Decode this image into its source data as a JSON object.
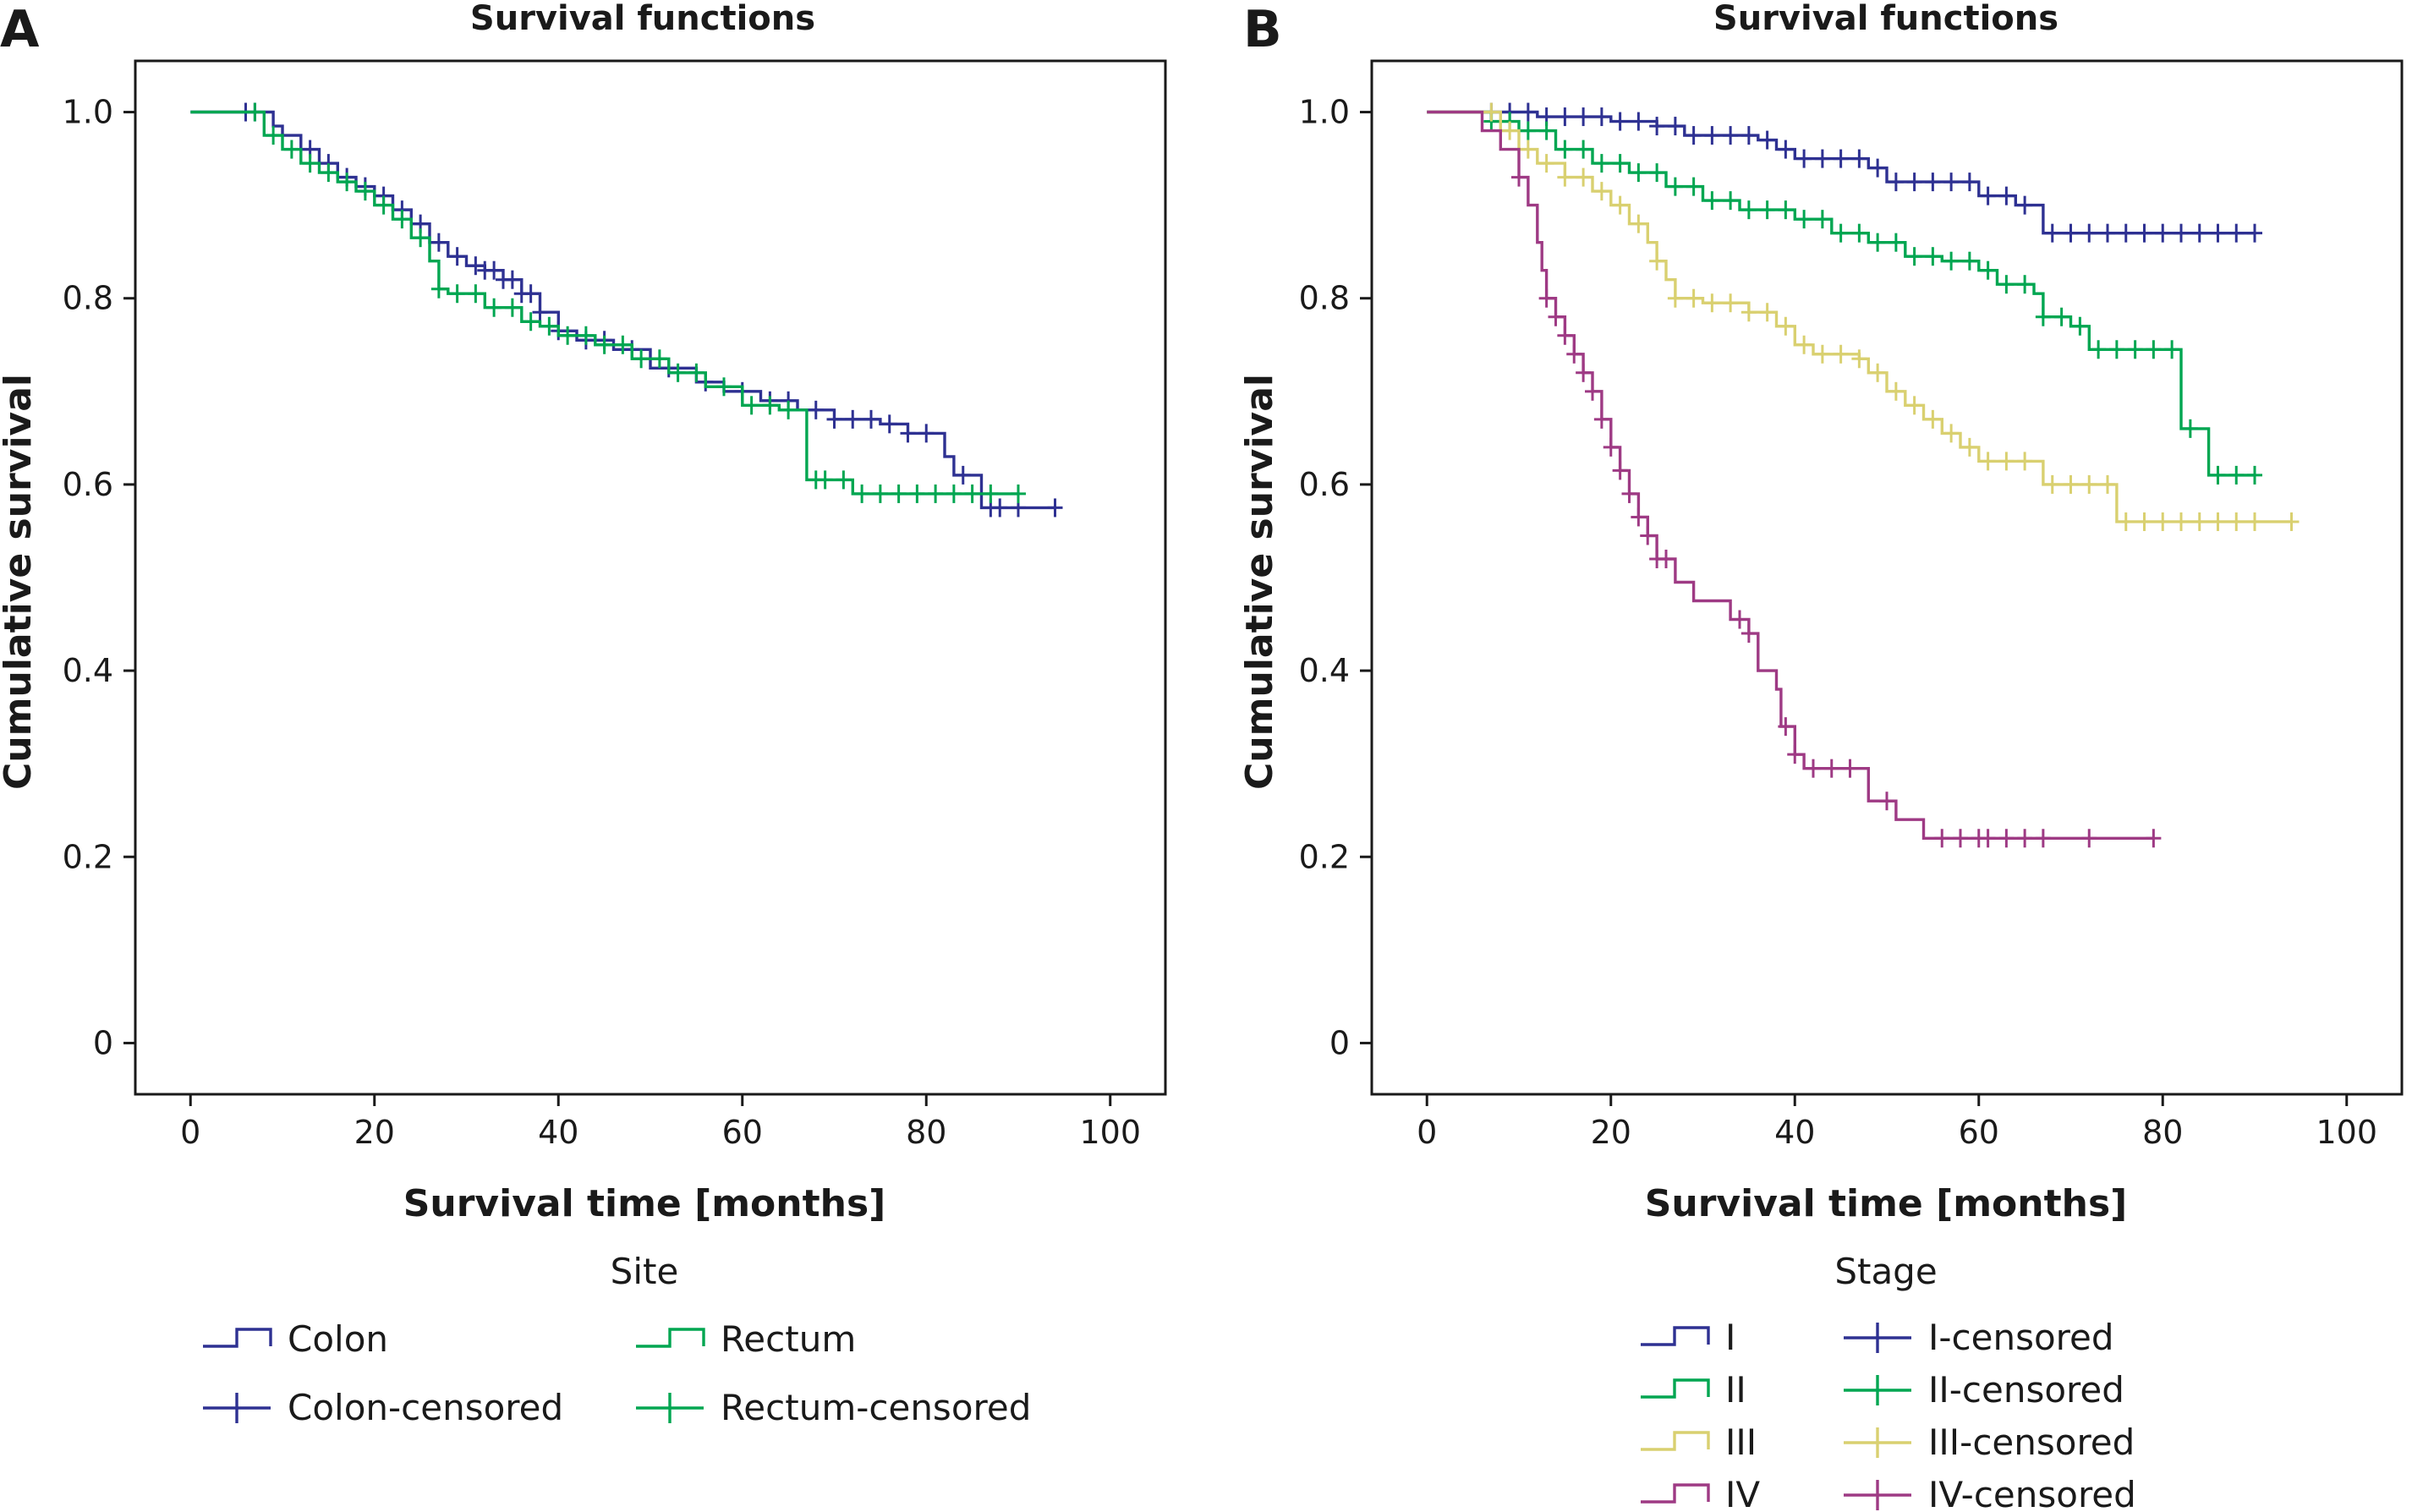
{
  "colors": {
    "colon": "#2e3192",
    "rectum": "#00a651",
    "I": "#2e3192",
    "II": "#00a651",
    "III": "#d9d070",
    "IV": "#9e3a84",
    "axis": "#1a1a1a"
  },
  "chart_data": [
    {
      "panel": "A",
      "type": "line",
      "step": true,
      "title": "Survival functions",
      "xlabel": "Survival time [months]",
      "ylabel": "Cumulative survival",
      "xlim": [
        -6,
        106
      ],
      "ylim": [
        -0.055,
        1.055
      ],
      "xticks": [
        "0",
        "20",
        "40",
        "60",
        "80",
        "100"
      ],
      "yticks": [
        "0",
        "0.2",
        "0.4",
        "0.6",
        "0.8",
        "1.0"
      ],
      "legend_title": "Site",
      "legend_position": "bottom",
      "legend": [
        "Colon",
        "Rectum",
        "Colon-censored",
        "Rectum-censored"
      ],
      "series": [
        {
          "name": "Colon",
          "color_key": "colon",
          "points": [
            [
              0,
              1.0
            ],
            [
              9,
              1.0
            ],
            [
              9,
              0.985
            ],
            [
              10,
              0.975
            ],
            [
              12,
              0.96
            ],
            [
              14,
              0.945
            ],
            [
              16,
              0.93
            ],
            [
              18,
              0.92
            ],
            [
              20,
              0.91
            ],
            [
              22,
              0.895
            ],
            [
              24,
              0.88
            ],
            [
              26,
              0.86
            ],
            [
              28,
              0.845
            ],
            [
              30,
              0.835
            ],
            [
              32,
              0.83
            ],
            [
              34,
              0.82
            ],
            [
              36,
              0.805
            ],
            [
              38,
              0.785
            ],
            [
              40,
              0.765
            ],
            [
              42,
              0.755
            ],
            [
              46,
              0.745
            ],
            [
              50,
              0.725
            ],
            [
              55,
              0.71
            ],
            [
              58,
              0.7
            ],
            [
              62,
              0.69
            ],
            [
              66,
              0.68
            ],
            [
              70,
              0.67
            ],
            [
              75,
              0.665
            ],
            [
              78,
              0.655
            ],
            [
              82,
              0.655
            ],
            [
              82,
              0.63
            ],
            [
              83,
              0.61
            ],
            [
              86,
              0.6
            ],
            [
              86,
              0.575
            ],
            [
              94,
              0.575
            ]
          ],
          "censored_x": [
            6,
            7,
            13,
            15,
            17,
            19,
            21,
            23,
            25,
            27,
            29,
            31,
            32,
            33,
            34,
            35,
            36,
            37,
            38,
            40,
            43,
            45,
            48,
            52,
            56,
            60,
            63,
            65,
            68,
            70,
            72,
            74,
            76,
            78,
            80,
            84,
            87,
            88,
            90,
            94
          ]
        },
        {
          "name": "Rectum",
          "color_key": "rectum",
          "points": [
            [
              0,
              1.0
            ],
            [
              8,
              1.0
            ],
            [
              8,
              0.975
            ],
            [
              10,
              0.96
            ],
            [
              12,
              0.945
            ],
            [
              14,
              0.935
            ],
            [
              16,
              0.925
            ],
            [
              18,
              0.915
            ],
            [
              20,
              0.9
            ],
            [
              22,
              0.885
            ],
            [
              24,
              0.865
            ],
            [
              26,
              0.84
            ],
            [
              27,
              0.81
            ],
            [
              28,
              0.805
            ],
            [
              32,
              0.79
            ],
            [
              36,
              0.775
            ],
            [
              38,
              0.77
            ],
            [
              40,
              0.76
            ],
            [
              44,
              0.75
            ],
            [
              48,
              0.735
            ],
            [
              52,
              0.72
            ],
            [
              56,
              0.705
            ],
            [
              60,
              0.685
            ],
            [
              64,
              0.68
            ],
            [
              67,
              0.68
            ],
            [
              67,
              0.605
            ],
            [
              72,
              0.605
            ],
            [
              72,
              0.59
            ],
            [
              90,
              0.59
            ]
          ],
          "censored_x": [
            7,
            9,
            11,
            13,
            15,
            17,
            19,
            21,
            23,
            25,
            27,
            29,
            31,
            33,
            35,
            37,
            39,
            41,
            43,
            45,
            47,
            49,
            51,
            53,
            55,
            58,
            61,
            63,
            65,
            68,
            69,
            71,
            73,
            75,
            77,
            79,
            81,
            83,
            85,
            87,
            90
          ]
        }
      ]
    },
    {
      "panel": "B",
      "type": "line",
      "step": true,
      "title": "Survival functions",
      "xlabel": "Survival time [months]",
      "ylabel": "Cumulative survival",
      "xlim": [
        -6,
        106
      ],
      "ylim": [
        -0.055,
        1.055
      ],
      "xticks": [
        "0",
        "20",
        "40",
        "60",
        "80",
        "100"
      ],
      "yticks": [
        "0",
        "0.2",
        "0.4",
        "0.6",
        "0.8",
        "1.0"
      ],
      "legend_title": "Stage",
      "legend_position": "bottom",
      "legend": [
        "I",
        "II",
        "III",
        "IV",
        "I-censored",
        "II-censored",
        "III-censored",
        "IV-censored"
      ],
      "series": [
        {
          "name": "I",
          "color_key": "I",
          "points": [
            [
              0,
              1.0
            ],
            [
              12,
              1.0
            ],
            [
              12,
              0.995
            ],
            [
              20,
              0.99
            ],
            [
              25,
              0.985
            ],
            [
              28,
              0.975
            ],
            [
              36,
              0.97
            ],
            [
              38,
              0.96
            ],
            [
              40,
              0.95
            ],
            [
              48,
              0.94
            ],
            [
              50,
              0.925
            ],
            [
              60,
              0.925
            ],
            [
              60,
              0.91
            ],
            [
              64,
              0.9
            ],
            [
              67,
              0.89
            ],
            [
              67,
              0.87
            ],
            [
              90,
              0.87
            ]
          ],
          "censored_x": [
            7,
            9,
            11,
            13,
            15,
            17,
            19,
            21,
            23,
            25,
            27,
            29,
            31,
            33,
            35,
            37,
            39,
            41,
            43,
            45,
            47,
            49,
            51,
            53,
            55,
            57,
            59,
            61,
            63,
            65,
            68,
            70,
            72,
            74,
            76,
            78,
            80,
            82,
            84,
            86,
            88,
            90
          ]
        },
        {
          "name": "II",
          "color_key": "II",
          "points": [
            [
              0,
              1.0
            ],
            [
              7,
              1.0
            ],
            [
              7,
              0.99
            ],
            [
              10,
              0.98
            ],
            [
              14,
              0.96
            ],
            [
              18,
              0.945
            ],
            [
              22,
              0.935
            ],
            [
              26,
              0.92
            ],
            [
              30,
              0.905
            ],
            [
              34,
              0.895
            ],
            [
              40,
              0.885
            ],
            [
              44,
              0.87
            ],
            [
              48,
              0.86
            ],
            [
              52,
              0.845
            ],
            [
              56,
              0.84
            ],
            [
              60,
              0.83
            ],
            [
              62,
              0.815
            ],
            [
              66,
              0.805
            ],
            [
              67,
              0.78
            ],
            [
              70,
              0.77
            ],
            [
              72,
              0.745
            ],
            [
              82,
              0.745
            ],
            [
              82,
              0.66
            ],
            [
              85,
              0.66
            ],
            [
              85,
              0.61
            ],
            [
              90,
              0.61
            ]
          ],
          "censored_x": [
            7,
            9,
            11,
            13,
            15,
            17,
            19,
            21,
            23,
            25,
            27,
            29,
            31,
            33,
            35,
            37,
            39,
            41,
            43,
            45,
            47,
            49,
            51,
            53,
            55,
            57,
            59,
            61,
            63,
            65,
            67,
            69,
            71,
            73,
            75,
            77,
            79,
            81,
            83,
            86,
            88,
            90
          ]
        },
        {
          "name": "III",
          "color_key": "III",
          "points": [
            [
              0,
              1.0
            ],
            [
              8,
              1.0
            ],
            [
              8,
              0.98
            ],
            [
              10,
              0.96
            ],
            [
              12,
              0.945
            ],
            [
              15,
              0.93
            ],
            [
              18,
              0.915
            ],
            [
              20,
              0.9
            ],
            [
              22,
              0.88
            ],
            [
              24,
              0.86
            ],
            [
              25,
              0.84
            ],
            [
              26,
              0.82
            ],
            [
              27,
              0.8
            ],
            [
              30,
              0.795
            ],
            [
              35,
              0.785
            ],
            [
              38,
              0.77
            ],
            [
              40,
              0.75
            ],
            [
              42,
              0.74
            ],
            [
              47,
              0.735
            ],
            [
              48,
              0.72
            ],
            [
              50,
              0.7
            ],
            [
              52,
              0.685
            ],
            [
              54,
              0.67
            ],
            [
              56,
              0.655
            ],
            [
              58,
              0.64
            ],
            [
              60,
              0.625
            ],
            [
              67,
              0.625
            ],
            [
              67,
              0.6
            ],
            [
              75,
              0.6
            ],
            [
              75,
              0.56
            ],
            [
              94,
              0.56
            ]
          ],
          "censored_x": [
            7,
            9,
            11,
            13,
            15,
            17,
            19,
            21,
            23,
            25,
            27,
            29,
            31,
            33,
            35,
            37,
            39,
            41,
            43,
            45,
            47,
            49,
            51,
            53,
            55,
            57,
            59,
            61,
            63,
            65,
            68,
            70,
            72,
            74,
            76,
            78,
            80,
            82,
            84,
            86,
            88,
            90,
            94
          ]
        },
        {
          "name": "IV",
          "color_key": "IV",
          "points": [
            [
              0,
              1.0
            ],
            [
              6,
              1.0
            ],
            [
              6,
              0.98
            ],
            [
              8,
              0.96
            ],
            [
              10,
              0.93
            ],
            [
              11,
              0.9
            ],
            [
              12,
              0.86
            ],
            [
              12.5,
              0.83
            ],
            [
              13,
              0.8
            ],
            [
              14,
              0.78
            ],
            [
              15,
              0.76
            ],
            [
              16,
              0.74
            ],
            [
              17,
              0.72
            ],
            [
              18,
              0.7
            ],
            [
              19,
              0.67
            ],
            [
              20,
              0.64
            ],
            [
              21,
              0.615
            ],
            [
              22,
              0.59
            ],
            [
              23,
              0.565
            ],
            [
              24,
              0.545
            ],
            [
              25,
              0.52
            ],
            [
              27,
              0.495
            ],
            [
              29,
              0.475
            ],
            [
              33,
              0.455
            ],
            [
              35,
              0.44
            ],
            [
              36,
              0.4
            ],
            [
              38,
              0.38
            ],
            [
              38.5,
              0.34
            ],
            [
              40,
              0.31
            ],
            [
              41,
              0.295
            ],
            [
              48,
              0.295
            ],
            [
              48,
              0.26
            ],
            [
              51,
              0.24
            ],
            [
              54,
              0.22
            ],
            [
              79,
              0.22
            ]
          ],
          "censored_x": [
            10,
            13,
            14,
            15,
            16,
            17,
            18,
            19,
            20,
            21,
            22,
            23,
            24,
            25,
            26,
            34,
            35,
            39,
            40,
            42,
            44,
            46,
            50,
            56,
            58,
            60,
            61,
            63,
            65,
            67,
            72,
            79
          ]
        }
      ]
    }
  ],
  "panel_a": {
    "letter": "A"
  },
  "panel_b": {
    "letter": "B"
  }
}
